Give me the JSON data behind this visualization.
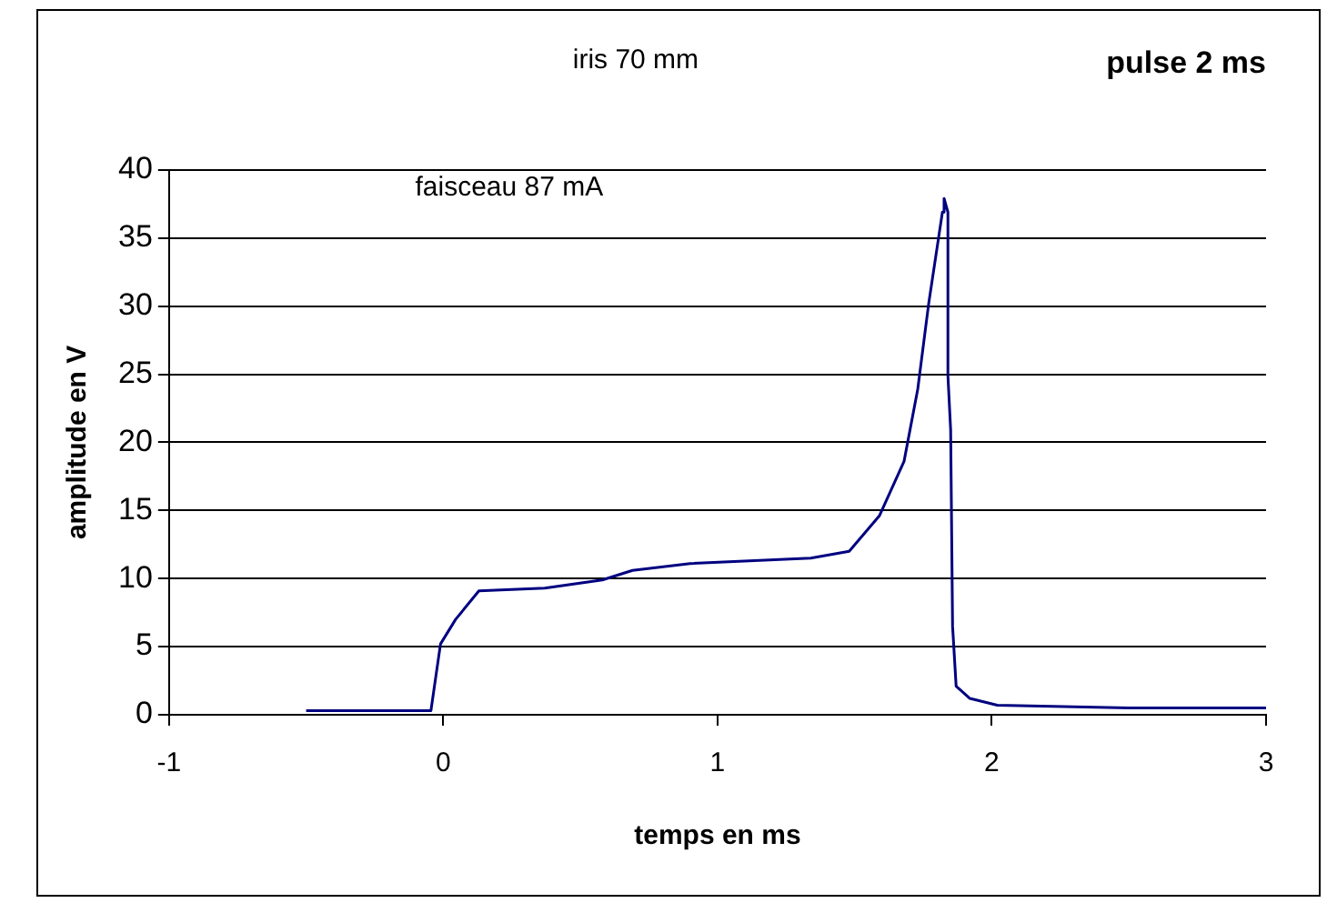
{
  "chart_data": {
    "type": "line",
    "title": "pulse 2 ms",
    "xlabel": "temps en ms",
    "ylabel": "amplitude en V",
    "annotations": [
      "iris 70 mm",
      "faisceau 87 mA"
    ],
    "xlim": [
      -1,
      3
    ],
    "xticks": [
      -1,
      0,
      1,
      2,
      3
    ],
    "ylim": [
      0,
      40
    ],
    "yticks": [
      0,
      5,
      10,
      15,
      20,
      25,
      30,
      35,
      40
    ],
    "grid": "y",
    "legend": false,
    "marker": "none",
    "line_style": "solid",
    "series": [
      {
        "color": "#000080",
        "x": [
          -0.5,
          -0.045,
          -0.01,
          0.045,
          0.13,
          0.37,
          0.58,
          0.69,
          0.9,
          1.34,
          1.48,
          1.59,
          1.68,
          1.73,
          1.77,
          1.82,
          1.826,
          1.84,
          1.84,
          1.85,
          1.857,
          1.87,
          1.92,
          2.02,
          2.5,
          3
        ],
        "values": [
          0.3,
          0.3,
          5.2,
          7.0,
          9.1,
          9.3,
          9.9,
          10.6,
          11.1,
          11.5,
          12.0,
          14.6,
          18.6,
          23.9,
          30.2,
          36.9,
          37.9,
          36.9,
          24.9,
          20.9,
          6.5,
          2.1,
          1.2,
          0.7,
          0.5,
          0.5
        ]
      }
    ]
  }
}
